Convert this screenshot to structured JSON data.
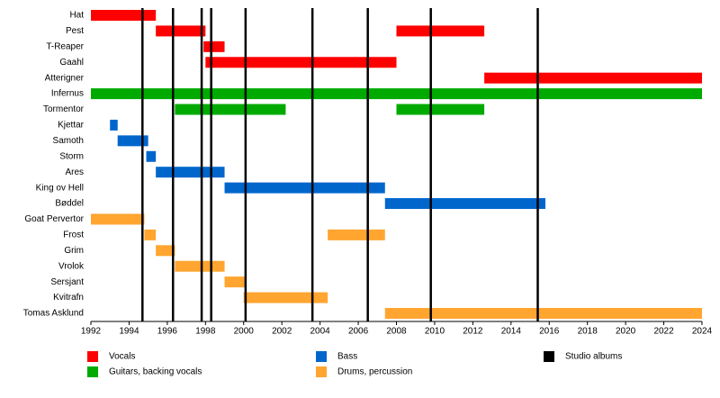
{
  "chart_data": {
    "type": "timeline",
    "roles": [
      {
        "name": "Vocals",
        "color": "#ff0000"
      },
      {
        "name": "Guitars, backing vocals",
        "color": "#00aa00"
      },
      {
        "name": "Bass",
        "color": "#0066cc"
      },
      {
        "name": "Drums, percussion",
        "color": "#ffa530"
      }
    ],
    "members": [
      {
        "name": "Hat",
        "bars": [
          {
            "role": 0,
            "start": 1992,
            "end": 1995.4
          }
        ]
      },
      {
        "name": "Pest",
        "bars": [
          {
            "role": 0,
            "start": 1995.4,
            "end": 1998.0
          },
          {
            "role": 0,
            "start": 2008.0,
            "end": 2012.6
          }
        ]
      },
      {
        "name": "T-Reaper",
        "bars": [
          {
            "role": 0,
            "start": 1997.9,
            "end": 1999.0
          }
        ]
      },
      {
        "name": "Gaahl",
        "bars": [
          {
            "role": 0,
            "start": 1998.0,
            "end": 2008.0
          }
        ]
      },
      {
        "name": "Atterigner",
        "bars": [
          {
            "role": 0,
            "start": 2012.6,
            "end": 2024
          }
        ]
      },
      {
        "name": "Infernus",
        "bars": [
          {
            "role": 1,
            "start": 1992,
            "end": 2024
          }
        ]
      },
      {
        "name": "Tormentor",
        "bars": [
          {
            "role": 1,
            "start": 1996.4,
            "end": 2002.2
          },
          {
            "role": 1,
            "start": 2008.0,
            "end": 2012.6
          }
        ]
      },
      {
        "name": "Kjettar",
        "bars": [
          {
            "role": 2,
            "start": 1993.0,
            "end": 1993.4
          }
        ]
      },
      {
        "name": "Samoth",
        "bars": [
          {
            "role": 2,
            "start": 1993.4,
            "end": 1995.0
          }
        ]
      },
      {
        "name": "Storm",
        "bars": [
          {
            "role": 2,
            "start": 1994.9,
            "end": 1995.4
          }
        ]
      },
      {
        "name": "Ares",
        "bars": [
          {
            "role": 2,
            "start": 1995.4,
            "end": 1999.0
          }
        ]
      },
      {
        "name": "King ov Hell",
        "bars": [
          {
            "role": 2,
            "start": 1999.0,
            "end": 2007.4
          }
        ]
      },
      {
        "name": "Bøddel",
        "bars": [
          {
            "role": 2,
            "start": 2007.4,
            "end": 2015.8
          }
        ]
      },
      {
        "name": "Goat Pervertor",
        "bars": [
          {
            "role": 3,
            "start": 1992,
            "end": 1994.8
          }
        ]
      },
      {
        "name": "Frost",
        "bars": [
          {
            "role": 3,
            "start": 1994.8,
            "end": 1995.4
          },
          {
            "role": 3,
            "start": 2004.4,
            "end": 2007.4
          }
        ]
      },
      {
        "name": "Grim",
        "bars": [
          {
            "role": 3,
            "start": 1995.4,
            "end": 1996.4
          }
        ]
      },
      {
        "name": "Vrolok",
        "bars": [
          {
            "role": 3,
            "start": 1996.4,
            "end": 1999.0
          }
        ]
      },
      {
        "name": "Sersjant",
        "bars": [
          {
            "role": 3,
            "start": 1999.0,
            "end": 2000.1
          }
        ]
      },
      {
        "name": "Kvitrafn",
        "bars": [
          {
            "role": 3,
            "start": 2000.0,
            "end": 2004.4
          }
        ]
      },
      {
        "name": "Tomas Asklund",
        "bars": [
          {
            "role": 3,
            "start": 2007.4,
            "end": 2024
          }
        ]
      }
    ],
    "albums": {
      "name": "Studio albums",
      "color": "#000000",
      "x": [
        1994.7,
        1996.3,
        1997.8,
        1998.3,
        2000.1,
        2003.6,
        2006.5,
        2009.8,
        2015.4
      ]
    },
    "xlim": [
      1992,
      2024
    ],
    "xticks": [
      1992,
      1994,
      1996,
      1998,
      2000,
      2002,
      2004,
      2006,
      2008,
      2010,
      2012,
      2014,
      2016,
      2018,
      2020,
      2022,
      2024
    ]
  }
}
